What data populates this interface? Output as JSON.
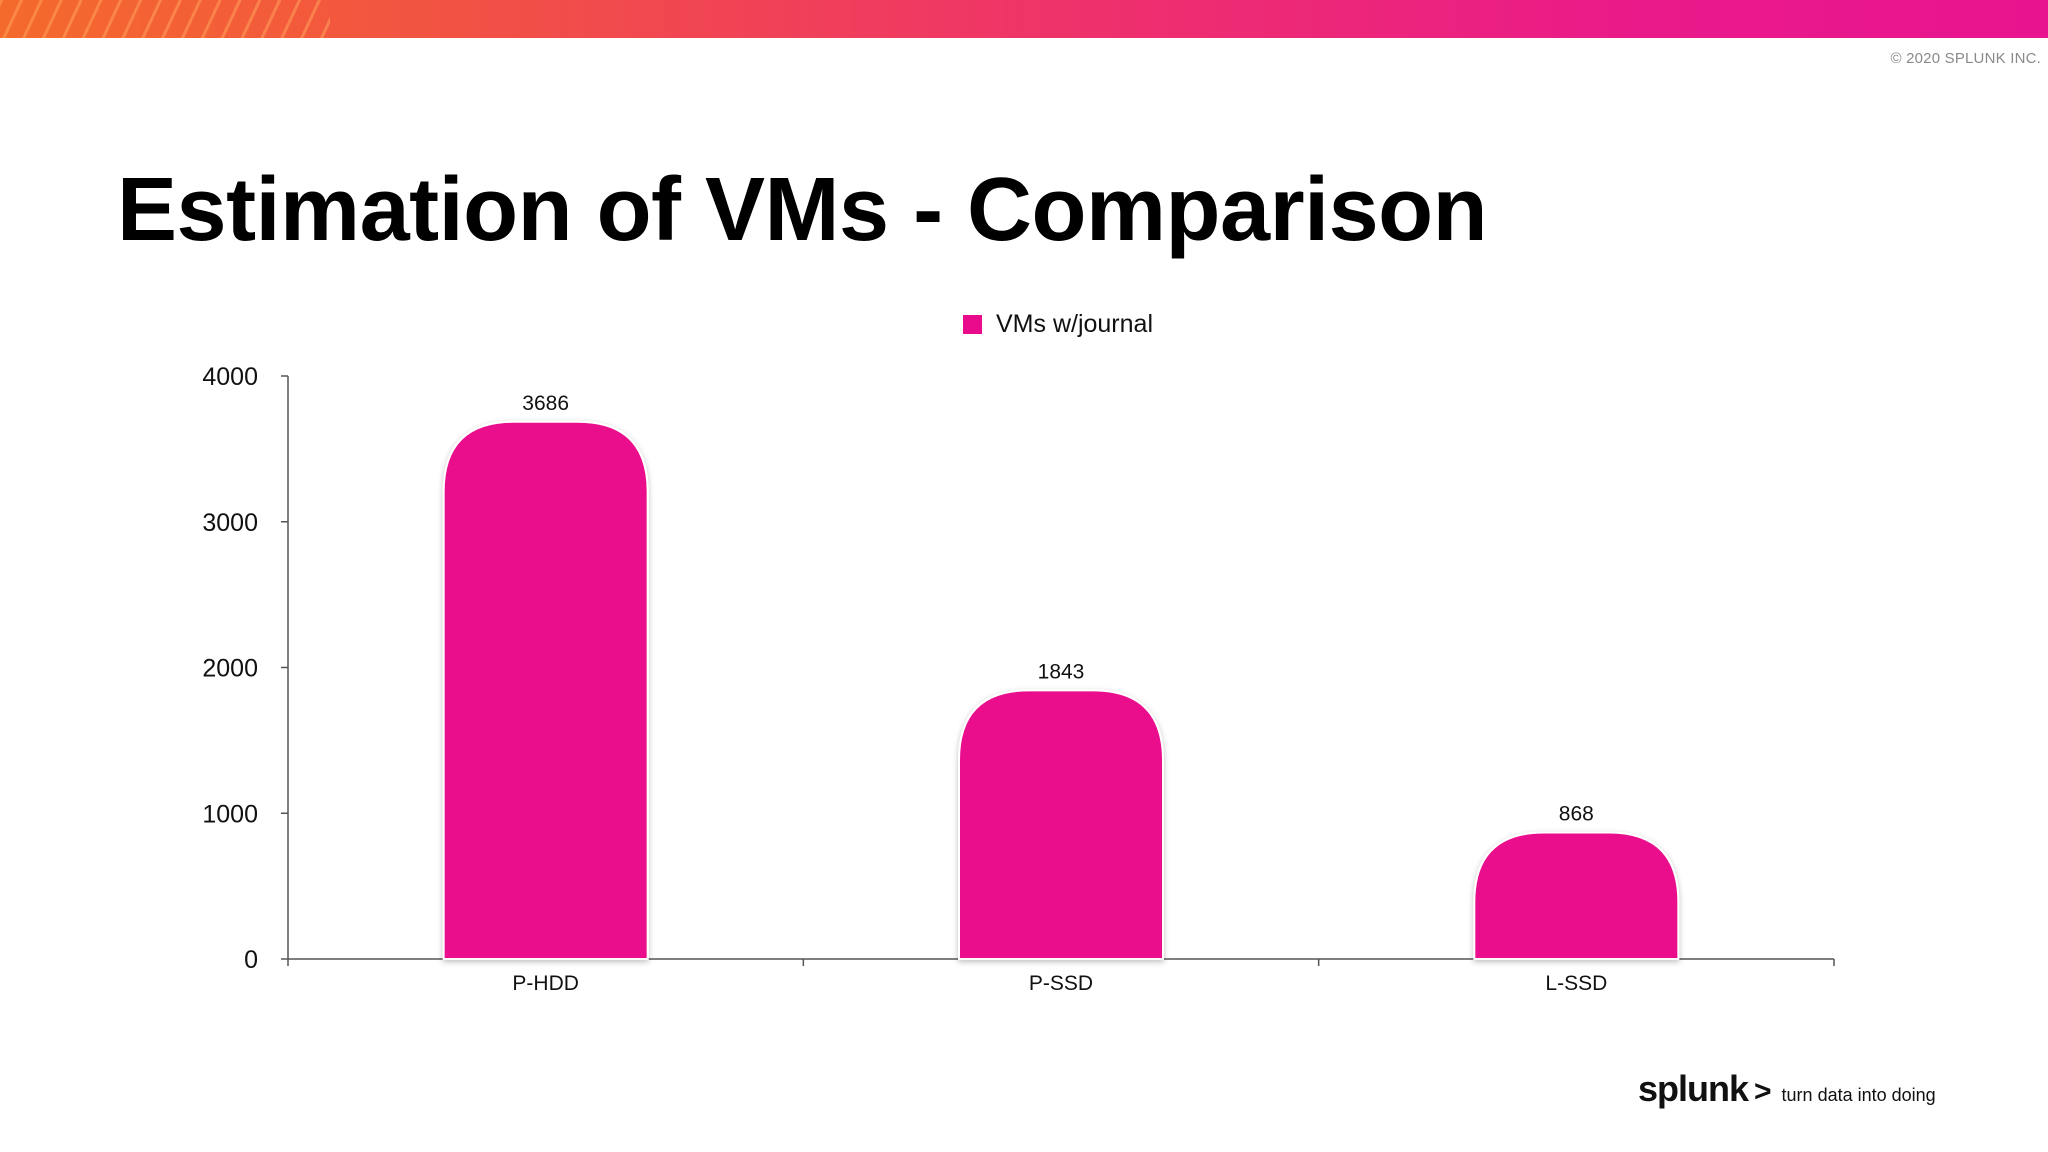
{
  "slide": {
    "copyright": "© 2020 SPLUNK INC.",
    "title": "Estimation of VMs - Comparison"
  },
  "branding": {
    "logo": "splunk",
    "chevron": ">",
    "tagline": "turn data into doing"
  },
  "colors": {
    "accent": "#ea0a8c",
    "gradient_start": "#f46a2c",
    "gradient_end": "#e8148f"
  },
  "chart_data": {
    "type": "bar",
    "title": "",
    "xlabel": "",
    "ylabel": "",
    "categories": [
      "P-HDD",
      "P-SSD",
      "L-SSD"
    ],
    "series": [
      {
        "name": "VMs w/journal",
        "values": [
          3686,
          1843,
          868
        ]
      }
    ],
    "data_labels": [
      "3686",
      "1843",
      "868"
    ],
    "ylim": [
      0,
      4000
    ],
    "yticks": [
      0,
      1000,
      2000,
      3000,
      4000
    ],
    "grid": false,
    "legend": "top-center"
  }
}
